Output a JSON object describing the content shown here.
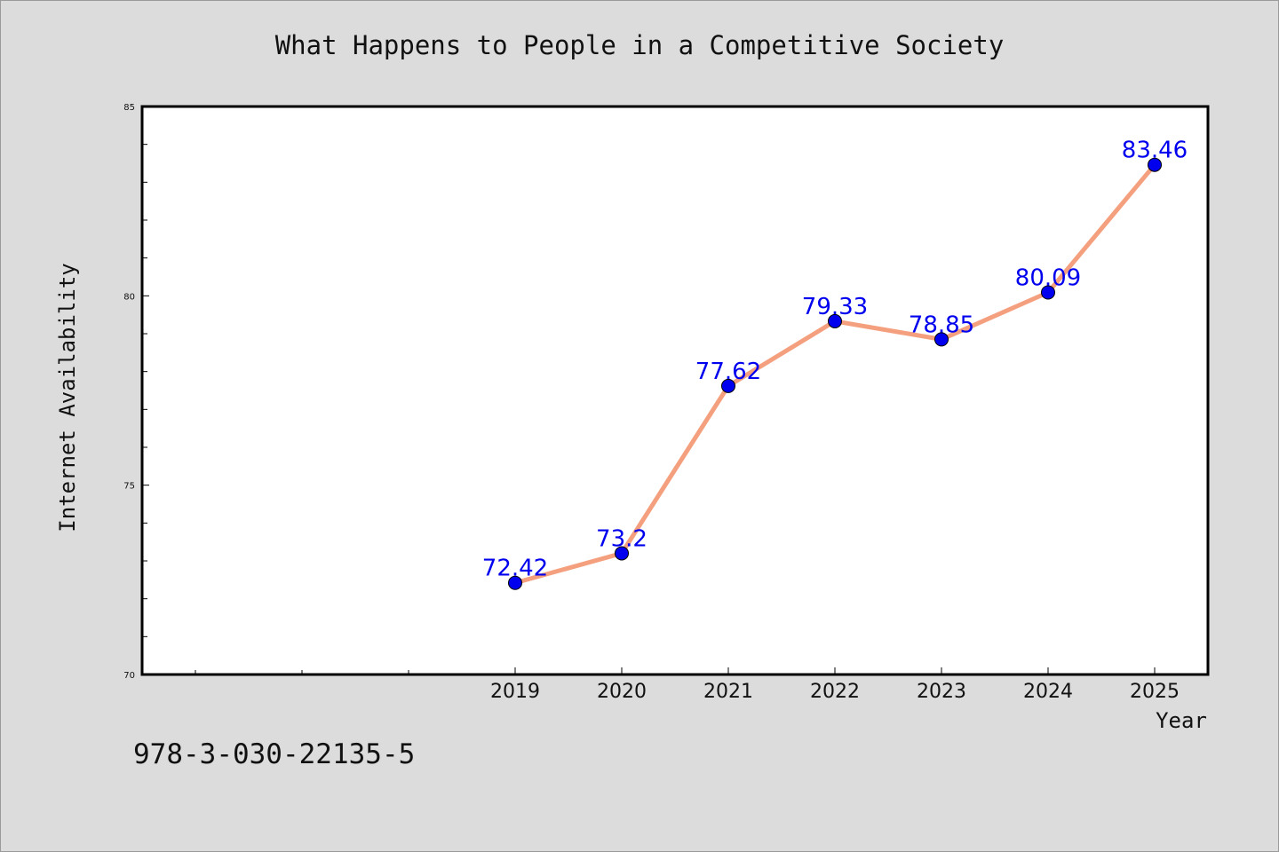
{
  "chart_data": {
    "type": "line",
    "title": "What Happens to People in a Competitive Society",
    "xlabel": "Year",
    "ylabel": "Internet Availability",
    "x": [
      2019,
      2020,
      2021,
      2022,
      2023,
      2024,
      2025
    ],
    "series": [
      {
        "values": [
          72.42,
          73.2,
          77.62,
          79.33,
          78.85,
          80.09,
          83.46
        ]
      }
    ],
    "data_labels": [
      "72.42",
      "73.2",
      "77.62",
      "79.33",
      "78.85",
      "80.09",
      "83.46"
    ],
    "x_tick_labels": [
      "2019",
      "2020",
      "2021",
      "2022",
      "2023",
      "2024",
      "2025"
    ],
    "xlim": [
      2015.5,
      2025.5
    ],
    "ylim": [
      70,
      85
    ],
    "y_ticks": [
      70,
      75,
      80,
      85
    ],
    "y_tick_labels": [
      "70",
      "75",
      "80",
      "85"
    ],
    "y_minor_step": 1,
    "grid": false,
    "line_color": "#f4a07e",
    "marker_color": "#0000ee",
    "label_color": "#0000ee"
  },
  "footer": {
    "code": "978-3-030-22135-5"
  }
}
